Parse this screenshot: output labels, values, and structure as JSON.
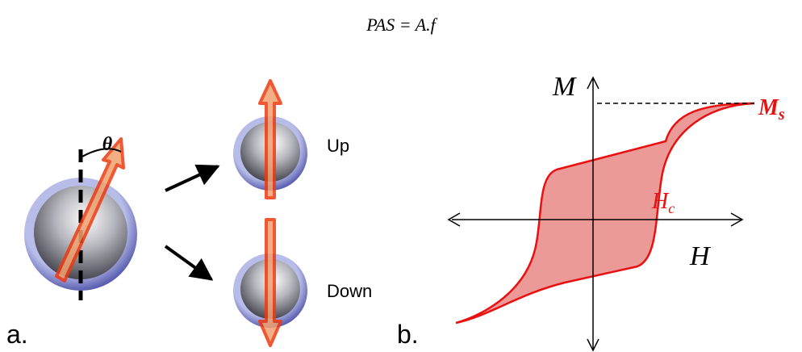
{
  "formula": "PAS = A.f",
  "panel_a": {
    "label": "a.",
    "angle": "θ",
    "states": [
      "Up",
      "Down"
    ]
  },
  "panel_b": {
    "label": "b.",
    "y_axis": "M",
    "x_axis": "H",
    "saturation": {
      "symbol": "M",
      "subscript": "s"
    },
    "coercivity": {
      "symbol": "H",
      "subscript": "c"
    }
  }
}
